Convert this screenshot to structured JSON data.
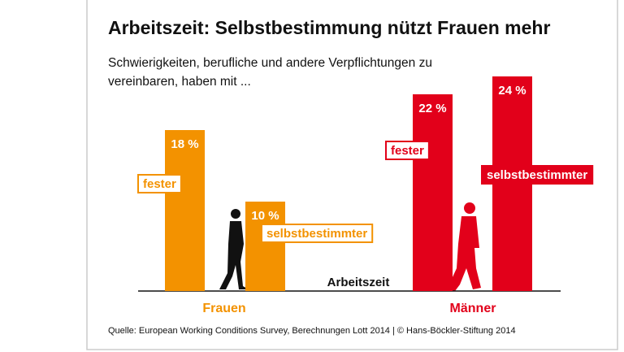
{
  "chart_data": {
    "type": "bar",
    "title": "Arbeitszeit: Selbstbestimmung nützt Frauen mehr",
    "subtitle": [
      "Schwierigkeiten, berufliche und andere Verpflichtungen zu",
      "vereinbaren, haben mit ..."
    ],
    "x_label": "Arbeitszeit",
    "categories": [
      "Frauen",
      "Männer"
    ],
    "colors": [
      "#f39200",
      "#e2001a"
    ],
    "series": [
      {
        "name": "fester",
        "values": [
          18,
          22
        ],
        "value_labels": [
          "18 %",
          "22 %"
        ]
      },
      {
        "name": "selbstbestimmter",
        "values": [
          10,
          24
        ],
        "value_labels": [
          "10 %",
          "24 %"
        ]
      }
    ],
    "source": "Quelle: European Working Conditions Survey, Berechnungen Lott 2014 | © Hans-Böckler-Stiftung 2014"
  }
}
